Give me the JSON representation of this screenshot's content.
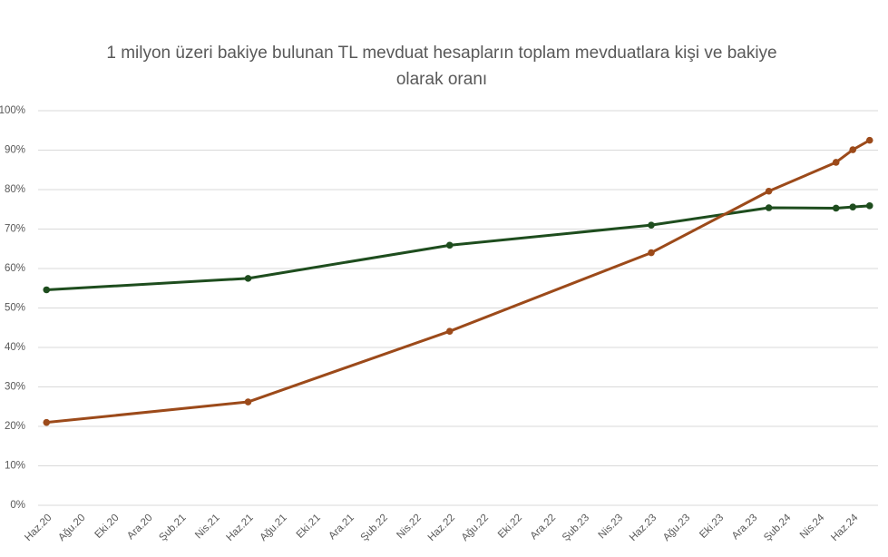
{
  "chart_data": {
    "type": "line",
    "title": "1 milyon üzeri bakiye bulunan TL mevduat hesapların toplam mevduatlara kişi ve bakiye olarak oranı",
    "x": [
      "2020-06",
      "2021-06",
      "2022-06",
      "2023-06",
      "2024-01",
      "2024-05",
      "2024-06",
      "2024-07"
    ],
    "series": [
      {
        "color": "#1e4d1e",
        "values": [
          54.6,
          57.5,
          65.9,
          71.0,
          75.4,
          75.3,
          75.6,
          75.9
        ]
      },
      {
        "color": "#9c4a1a",
        "values": [
          21.0,
          26.2,
          44.1,
          64.0,
          79.6,
          86.9,
          90.1,
          92.5
        ]
      }
    ],
    "xlim": [
      "2020-06",
      "2024-07"
    ],
    "xticks": [
      {
        "value": "2020-06",
        "label": "Haz.20"
      },
      {
        "value": "2020-08",
        "label": "Ağu.20"
      },
      {
        "value": "2020-10",
        "label": "Eki.20"
      },
      {
        "value": "2020-12",
        "label": "Ara.20"
      },
      {
        "value": "2021-02",
        "label": "Şub.21"
      },
      {
        "value": "2021-04",
        "label": "Nis.21"
      },
      {
        "value": "2021-06",
        "label": "Haz.21"
      },
      {
        "value": "2021-08",
        "label": "Ağu.21"
      },
      {
        "value": "2021-10",
        "label": "Eki.21"
      },
      {
        "value": "2021-12",
        "label": "Ara.21"
      },
      {
        "value": "2022-02",
        "label": "Şub.22"
      },
      {
        "value": "2022-04",
        "label": "Nis.22"
      },
      {
        "value": "2022-06",
        "label": "Haz.22"
      },
      {
        "value": "2022-08",
        "label": "Ağu.22"
      },
      {
        "value": "2022-10",
        "label": "Eki.22"
      },
      {
        "value": "2022-12",
        "label": "Ara.22"
      },
      {
        "value": "2023-02",
        "label": "Şub.23"
      },
      {
        "value": "2023-04",
        "label": "Nis.23"
      },
      {
        "value": "2023-06",
        "label": "Haz.23"
      },
      {
        "value": "2023-08",
        "label": "Ağu.23"
      },
      {
        "value": "2023-10",
        "label": "Eki.23"
      },
      {
        "value": "2023-12",
        "label": "Ara.23"
      },
      {
        "value": "2024-02",
        "label": "Şub.24"
      },
      {
        "value": "2024-04",
        "label": "Nis.24"
      },
      {
        "value": "2024-06",
        "label": "Haz.24"
      }
    ],
    "ylim": [
      0,
      100
    ],
    "yticks": [
      {
        "value": 0,
        "label": "0%"
      },
      {
        "value": 10,
        "label": "10%"
      },
      {
        "value": 20,
        "label": "20%"
      },
      {
        "value": 30,
        "label": "30%"
      },
      {
        "value": 40,
        "label": "40%"
      },
      {
        "value": 50,
        "label": "50%"
      },
      {
        "value": 60,
        "label": "60%"
      },
      {
        "value": 70,
        "label": "70%"
      },
      {
        "value": 80,
        "label": "80%"
      },
      {
        "value": 90,
        "label": "90%"
      },
      {
        "value": 100,
        "label": "100%"
      }
    ],
    "grid": true
  }
}
